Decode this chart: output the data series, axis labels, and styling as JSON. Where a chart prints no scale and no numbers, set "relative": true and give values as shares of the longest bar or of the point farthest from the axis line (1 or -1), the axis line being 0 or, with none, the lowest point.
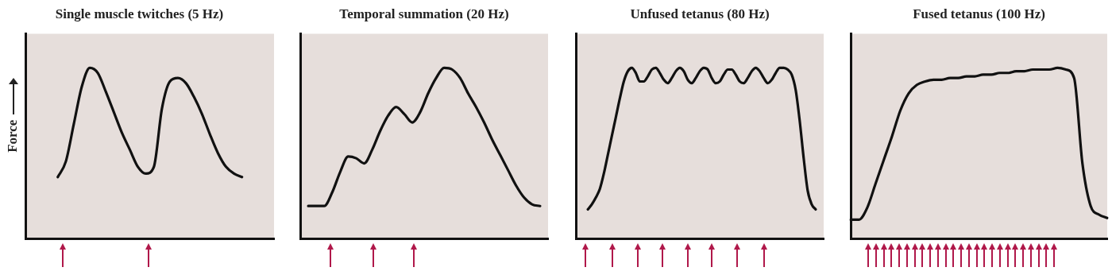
{
  "chart_data": [
    {
      "type": "line",
      "title": "Single muscle twitches (5 Hz)",
      "ylabel": "Force",
      "relative": true,
      "tick_labels": false,
      "color": "#111111",
      "categories": [
        null,
        null,
        null,
        null,
        null,
        null,
        null,
        null,
        null,
        null,
        null,
        null,
        null,
        null,
        null,
        null,
        null,
        null,
        null,
        null,
        null,
        null,
        null,
        null,
        null,
        null,
        null,
        null,
        null,
        null,
        null,
        null
      ],
      "values": [
        null,
        null,
        null,
        null,
        0.36,
        0.45,
        0.67,
        0.89,
        1,
        0.97,
        0.86,
        0.74,
        0.62,
        0.52,
        0.42,
        0.38,
        0.42,
        0.76,
        0.92,
        0.94,
        0.91,
        0.83,
        0.73,
        0.61,
        0.5,
        0.42,
        0.38,
        0.36,
        null,
        null,
        null,
        null
      ]
    },
    {
      "type": "line",
      "title": "Temporal summation (20 Hz)",
      "relative": true,
      "tick_labels": false,
      "color": "#111111",
      "categories": [
        null,
        null,
        null,
        null,
        null,
        null,
        null,
        null,
        null,
        null,
        null,
        null,
        null,
        null,
        null,
        null,
        null,
        null,
        null,
        null,
        null,
        null,
        null,
        null,
        null,
        null,
        null,
        null,
        null,
        null,
        null,
        null
      ],
      "values": [
        null,
        0.19,
        0.19,
        0.19,
        0.27,
        0.39,
        0.48,
        0.47,
        0.44,
        0.52,
        0.63,
        0.72,
        0.77,
        0.73,
        0.68,
        0.74,
        0.85,
        0.94,
        1,
        0.99,
        0.94,
        0.85,
        0.77,
        0.68,
        0.58,
        0.49,
        0.4,
        0.31,
        0.24,
        0.2,
        0.19,
        null
      ]
    },
    {
      "type": "line",
      "title": "Unfused tetanus (80 Hz)",
      "relative": true,
      "tick_labels": false,
      "color": "#111111",
      "categories": [
        null,
        null,
        null,
        null,
        null,
        null,
        null,
        null,
        null,
        null,
        null,
        null,
        null,
        null,
        null,
        null,
        null,
        null,
        null,
        null,
        null,
        null,
        null,
        null,
        null,
        null,
        null,
        null,
        null,
        null,
        null,
        null,
        null,
        null,
        null,
        null,
        null,
        null,
        null,
        null,
        null,
        null,
        null,
        null,
        null,
        null,
        null,
        null,
        null,
        null,
        null,
        null,
        null,
        null,
        null,
        null,
        null,
        null,
        null,
        null,
        null,
        null,
        null
      ],
      "values": [
        null,
        null,
        null,
        0.17,
        0.2,
        0.24,
        0.29,
        0.38,
        0.49,
        0.6,
        0.71,
        0.82,
        0.92,
        0.98,
        1,
        0.97,
        0.92,
        0.92,
        0.95,
        0.99,
        1,
        0.97,
        0.93,
        0.91,
        0.94,
        0.98,
        1,
        0.98,
        0.93,
        0.91,
        0.94,
        0.98,
        1,
        0.99,
        0.94,
        0.91,
        0.92,
        0.96,
        0.99,
        0.99,
        0.96,
        0.92,
        0.91,
        0.94,
        0.98,
        1,
        0.98,
        0.94,
        0.91,
        0.93,
        0.97,
        1,
        1,
        0.99,
        0.96,
        0.87,
        0.69,
        0.47,
        0.28,
        0.2,
        0.17,
        null,
        null
      ]
    },
    {
      "type": "line",
      "title": "Fused tetanus (100 Hz)",
      "relative": true,
      "tick_labels": false,
      "color": "#111111",
      "categories": [
        null,
        null,
        null,
        null,
        null,
        null,
        null,
        null,
        null,
        null,
        null,
        null,
        null,
        null,
        null,
        null,
        null,
        null,
        null,
        null,
        null,
        null,
        null,
        null,
        null,
        null,
        null,
        null,
        null,
        null,
        null,
        null
      ],
      "values": [
        0.11,
        0.11,
        0.18,
        0.32,
        0.46,
        0.6,
        0.75,
        0.85,
        0.9,
        0.92,
        0.93,
        0.93,
        0.94,
        0.94,
        0.95,
        0.95,
        0.96,
        0.96,
        0.97,
        0.97,
        0.98,
        0.98,
        0.99,
        0.99,
        0.99,
        1,
        0.99,
        0.94,
        0.44,
        0.19,
        0.14,
        0.12
      ]
    }
  ]
}
